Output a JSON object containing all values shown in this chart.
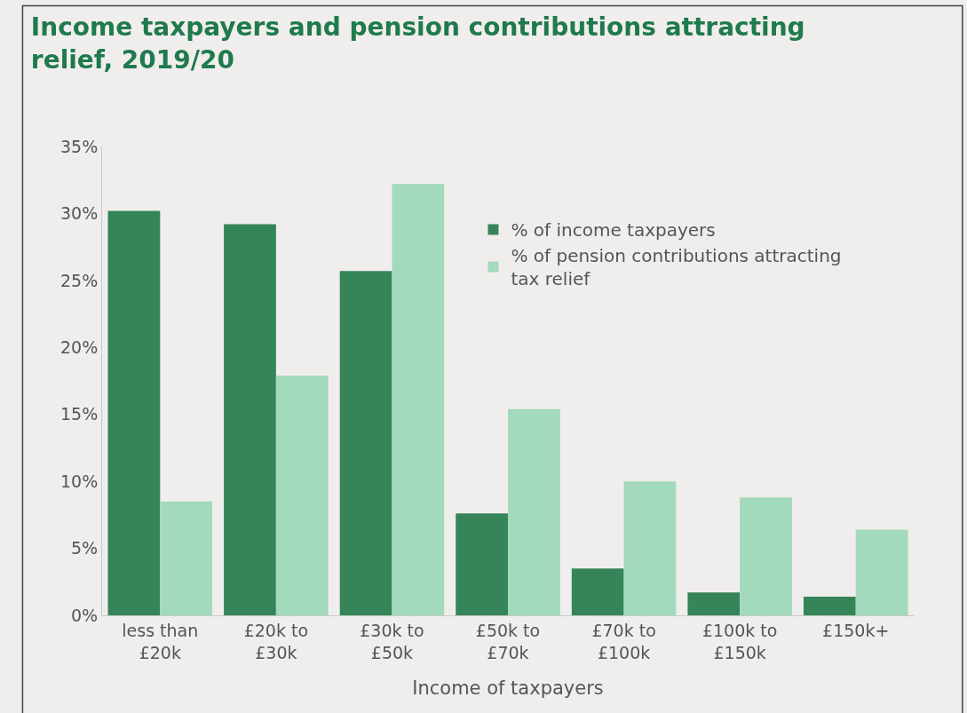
{
  "chart_data": {
    "type": "bar",
    "title": "Income taxpayers and pension contributions attracting relief, 2019/20",
    "xlabel": "Income of taxpayers",
    "categories": [
      "less than £20k",
      "£20k to £30k",
      "£30k to £50k",
      "£50k to £70k",
      "£70k to £100k",
      "£100k to £150k",
      "£150k+"
    ],
    "series": [
      {
        "name": "% of income taxpayers",
        "color": "#358559",
        "values": [
          30.2,
          29.2,
          25.7,
          7.6,
          3.5,
          1.7,
          1.4
        ]
      },
      {
        "name": "% of pension contributions attracting tax relief",
        "color": "#a3d9bc",
        "values": [
          8.5,
          17.9,
          32.2,
          15.4,
          10.0,
          8.8,
          6.4
        ]
      }
    ],
    "ylim": [
      0,
      35
    ],
    "yticks": [
      {
        "value": 0,
        "label": "0%"
      },
      {
        "value": 5,
        "label": "5%"
      },
      {
        "value": 10,
        "label": "10%"
      },
      {
        "value": 15,
        "label": "15%"
      },
      {
        "value": 20,
        "label": "20%"
      },
      {
        "value": 25,
        "label": "25%"
      },
      {
        "value": 30,
        "label": "30%"
      },
      {
        "value": 35,
        "label": "35%"
      }
    ],
    "grid": false,
    "legend": "top right"
  }
}
